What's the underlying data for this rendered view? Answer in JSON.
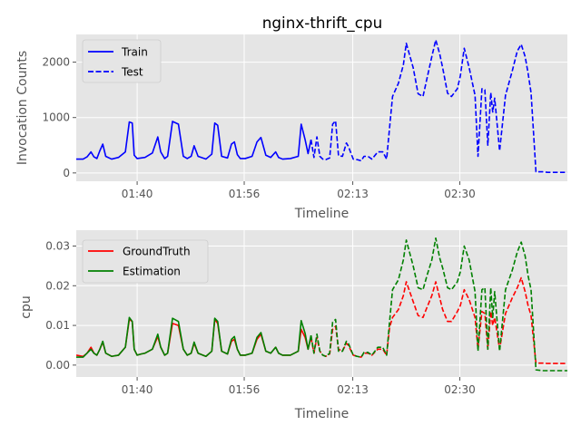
{
  "chart_data": [
    {
      "type": "line",
      "title": "nginx-thrift_cpu",
      "xlabel": "Timeline",
      "ylabel": "Invocation Counts",
      "xlim": [
        0,
        100
      ],
      "ylim": [
        -150,
        2500
      ],
      "x_tick_positions": [
        12.4,
        34.2,
        56.3,
        78.1
      ],
      "x_tick_labels": [
        "01:40",
        "01:56",
        "02:13",
        "02:30"
      ],
      "y_ticks": [
        0,
        1000,
        2000
      ],
      "y_tick_labels": [
        "0",
        "1000",
        "2000"
      ],
      "grid": true,
      "legend": "top-left",
      "series": [
        {
          "name": "Train",
          "color": "#0000ff",
          "style": "solid",
          "x": [
            0,
            1.4,
            2.2,
            3,
            3.6,
            4.2,
            4.8,
            5.4,
            6,
            7.2,
            8.6,
            10,
            10.8,
            11.4,
            11.8,
            12.4,
            13.2,
            14,
            15.5,
            16.6,
            17.2,
            18,
            18.6,
            19.6,
            20.8,
            21.8,
            22.6,
            23.4,
            24,
            24.8,
            26.4,
            27.6,
            28.2,
            28.8,
            29.6,
            30.8,
            31.6,
            32.2,
            32.8,
            33.4,
            34.4,
            35.8,
            36.8,
            37.6,
            38.6,
            39.6,
            40.6,
            41.2,
            42,
            43.6,
            45.2,
            45.8,
            46.6,
            47.2,
            47.8
          ],
          "y": [
            250,
            250,
            290,
            380,
            290,
            260,
            400,
            520,
            300,
            250,
            280,
            380,
            920,
            900,
            320,
            260,
            270,
            280,
            360,
            650,
            380,
            260,
            300,
            930,
            880,
            300,
            260,
            300,
            490,
            300,
            250,
            340,
            900,
            860,
            300,
            270,
            520,
            560,
            330,
            260,
            260,
            300,
            560,
            640,
            320,
            280,
            380,
            280,
            250,
            260,
            300,
            880,
            600,
            350,
            600
          ]
        },
        {
          "name": "Test",
          "color": "#0000ff",
          "style": "dashed",
          "x": [
            47.8,
            48.4,
            49,
            49.6,
            50.2,
            50.8,
            51.6,
            52.2,
            52.8,
            53.4,
            54.2,
            55,
            55.4,
            56.4,
            57.2,
            58,
            58.6,
            59.4,
            60.2,
            61.4,
            62.4,
            63.2,
            63.8,
            64.4,
            65.6,
            66.6,
            67.2,
            68.6,
            69.6,
            70.6,
            71.4,
            72.4,
            73.2,
            74,
            74.6,
            75.6,
            76.4,
            77.6,
            78.2,
            79,
            80,
            81.2,
            81.8,
            82.6,
            83.2,
            83.8,
            84.4,
            84.8,
            85.2,
            86.2,
            87.4,
            88.8,
            89.8,
            90.6,
            91.4,
            92,
            92.6,
            93.6,
            95,
            96,
            100
          ],
          "y": [
            600,
            280,
            650,
            300,
            250,
            240,
            270,
            880,
            940,
            310,
            300,
            540,
            480,
            250,
            240,
            220,
            300,
            300,
            250,
            380,
            380,
            250,
            820,
            1380,
            1620,
            1950,
            2340,
            1900,
            1430,
            1380,
            1700,
            2100,
            2400,
            2150,
            1900,
            1440,
            1380,
            1520,
            1750,
            2250,
            1900,
            1400,
            300,
            1520,
            1500,
            500,
            1450,
            1100,
            1350,
            400,
            1400,
            1850,
            2200,
            2320,
            2100,
            1800,
            1450,
            20,
            20,
            10,
            10
          ]
        }
      ]
    },
    {
      "type": "line",
      "title": "",
      "xlabel": "Timeline",
      "ylabel": "cpu",
      "xlim": [
        0,
        100
      ],
      "ylim": [
        -0.003,
        0.034
      ],
      "x_tick_positions": [
        12.4,
        34.2,
        56.3,
        78.1
      ],
      "x_tick_labels": [
        "01:40",
        "01:56",
        "02:13",
        "02:30"
      ],
      "y_ticks": [
        0,
        0.01,
        0.02,
        0.03
      ],
      "y_tick_labels": [
        "0.00",
        "0.01",
        "0.02",
        "0.03"
      ],
      "grid": true,
      "legend": "top-left",
      "series": [
        {
          "name": "GroundTruth",
          "color": "#ff0000",
          "style": "solid-then-dashed",
          "x": [
            0,
            1.4,
            2.2,
            3,
            3.6,
            4.2,
            4.8,
            5.4,
            6,
            7.2,
            8.6,
            10,
            10.8,
            11.4,
            11.8,
            12.4,
            13.2,
            14,
            15.5,
            16.6,
            17.2,
            18,
            18.6,
            19.6,
            20.8,
            21.8,
            22.6,
            23.4,
            24,
            24.8,
            26.4,
            27.6,
            28.2,
            28.8,
            29.6,
            30.8,
            31.6,
            32.2,
            32.8,
            33.4,
            34.4,
            35.8,
            36.8,
            37.6,
            38.6,
            39.6,
            40.6,
            41.2,
            42,
            43.6,
            45.2,
            45.8,
            46.6,
            47.2,
            47.8,
            48.4,
            49,
            49.6,
            50.2,
            50.8,
            51.6,
            52.2,
            52.8,
            53.4,
            54.2,
            55,
            55.4,
            56.4,
            57.2,
            58,
            58.6,
            59.4,
            60.2,
            61.4,
            62.4,
            63.2,
            63.8,
            64.4,
            65.6,
            66.6,
            67.2,
            68.6,
            69.6,
            70.6,
            71.4,
            72.4,
            73.2,
            74,
            74.6,
            75.6,
            76.4,
            77.6,
            78.2,
            79,
            80,
            81.2,
            81.8,
            82.6,
            83.2,
            83.8,
            84.4,
            84.8,
            85.2,
            86.2,
            87.4,
            88.8,
            89.8,
            90.6,
            91.4,
            92,
            92.6,
            93.6,
            95,
            96,
            100
          ],
          "y": [
            0.0025,
            0.0022,
            0.003,
            0.0045,
            0.003,
            0.0025,
            0.004,
            0.0058,
            0.003,
            0.0022,
            0.0025,
            0.0045,
            0.0115,
            0.011,
            0.004,
            0.0025,
            0.0028,
            0.003,
            0.004,
            0.0072,
            0.0045,
            0.0025,
            0.003,
            0.0105,
            0.01,
            0.004,
            0.0025,
            0.003,
            0.0055,
            0.003,
            0.0022,
            0.0035,
            0.0115,
            0.0105,
            0.0035,
            0.0028,
            0.006,
            0.0065,
            0.004,
            0.0025,
            0.0025,
            0.003,
            0.0065,
            0.0078,
            0.0035,
            0.003,
            0.0045,
            0.003,
            0.0025,
            0.0025,
            0.0035,
            0.009,
            0.007,
            0.004,
            0.007,
            0.003,
            0.007,
            0.0035,
            0.0025,
            0.0022,
            0.0028,
            0.009,
            0.0098,
            0.004,
            0.0035,
            0.0055,
            0.005,
            0.0025,
            0.0022,
            0.002,
            0.003,
            0.003,
            0.0025,
            0.004,
            0.004,
            0.0025,
            0.0095,
            0.012,
            0.014,
            0.0175,
            0.021,
            0.016,
            0.0125,
            0.012,
            0.0145,
            0.0175,
            0.021,
            0.017,
            0.014,
            0.011,
            0.011,
            0.0135,
            0.015,
            0.019,
            0.0165,
            0.012,
            0.004,
            0.0135,
            0.013,
            0.004,
            0.0135,
            0.01,
            0.012,
            0.004,
            0.013,
            0.017,
            0.0195,
            0.022,
            0.0185,
            0.015,
            0.0125,
            0.0005,
            0.0005,
            0.0004,
            0.0004
          ]
        },
        {
          "name": "Estimation",
          "color": "#008000",
          "style": "solid-then-dashed",
          "x": [
            0,
            1.4,
            2.2,
            3,
            3.6,
            4.2,
            4.8,
            5.4,
            6,
            7.2,
            8.6,
            10,
            10.8,
            11.4,
            11.8,
            12.4,
            13.2,
            14,
            15.5,
            16.6,
            17.2,
            18,
            18.6,
            19.6,
            20.8,
            21.8,
            22.6,
            23.4,
            24,
            24.8,
            26.4,
            27.6,
            28.2,
            28.8,
            29.6,
            30.8,
            31.6,
            32.2,
            32.8,
            33.4,
            34.4,
            35.8,
            36.8,
            37.6,
            38.6,
            39.6,
            40.6,
            41.2,
            42,
            43.6,
            45.2,
            45.8,
            46.6,
            47.2,
            47.8,
            48.4,
            49,
            49.6,
            50.2,
            50.8,
            51.6,
            52.2,
            52.8,
            53.4,
            54.2,
            55,
            55.4,
            56.4,
            57.2,
            58,
            58.6,
            59.4,
            60.2,
            61.4,
            62.4,
            63.2,
            63.8,
            64.4,
            65.6,
            66.6,
            67.2,
            68.6,
            69.6,
            70.6,
            71.4,
            72.4,
            73.2,
            74,
            74.6,
            75.6,
            76.4,
            77.6,
            78.2,
            79,
            80,
            81.2,
            81.8,
            82.6,
            83.2,
            83.8,
            84.4,
            84.8,
            85.2,
            86.2,
            87.4,
            88.8,
            89.8,
            90.6,
            91.4,
            92,
            92.6,
            93.6,
            95,
            96,
            100
          ],
          "y": [
            0.002,
            0.002,
            0.003,
            0.004,
            0.003,
            0.0025,
            0.004,
            0.006,
            0.003,
            0.0022,
            0.0025,
            0.0045,
            0.012,
            0.011,
            0.004,
            0.0025,
            0.0028,
            0.003,
            0.004,
            0.0078,
            0.0045,
            0.0025,
            0.003,
            0.0118,
            0.011,
            0.004,
            0.0025,
            0.003,
            0.0058,
            0.003,
            0.0022,
            0.0035,
            0.0118,
            0.011,
            0.0035,
            0.0028,
            0.0065,
            0.0072,
            0.004,
            0.0025,
            0.0025,
            0.003,
            0.007,
            0.0082,
            0.0035,
            0.003,
            0.0045,
            0.003,
            0.0025,
            0.0025,
            0.0035,
            0.0112,
            0.008,
            0.004,
            0.0075,
            0.003,
            0.0078,
            0.0035,
            0.0025,
            0.0022,
            0.003,
            0.0108,
            0.0115,
            0.0035,
            0.0035,
            0.006,
            0.0055,
            0.0025,
            0.0022,
            0.002,
            0.0032,
            0.0032,
            0.0025,
            0.0045,
            0.0045,
            0.0025,
            0.011,
            0.019,
            0.0215,
            0.0265,
            0.0315,
            0.025,
            0.0195,
            0.019,
            0.0225,
            0.0265,
            0.032,
            0.027,
            0.0245,
            0.0195,
            0.019,
            0.021,
            0.0235,
            0.03,
            0.0265,
            0.0185,
            0.0035,
            0.019,
            0.0195,
            0.004,
            0.0195,
            0.012,
            0.0185,
            0.0035,
            0.019,
            0.024,
            0.0285,
            0.031,
            0.0275,
            0.0225,
            0.019,
            -0.0012,
            -0.0014,
            -0.0014,
            -0.0014
          ]
        }
      ]
    }
  ]
}
